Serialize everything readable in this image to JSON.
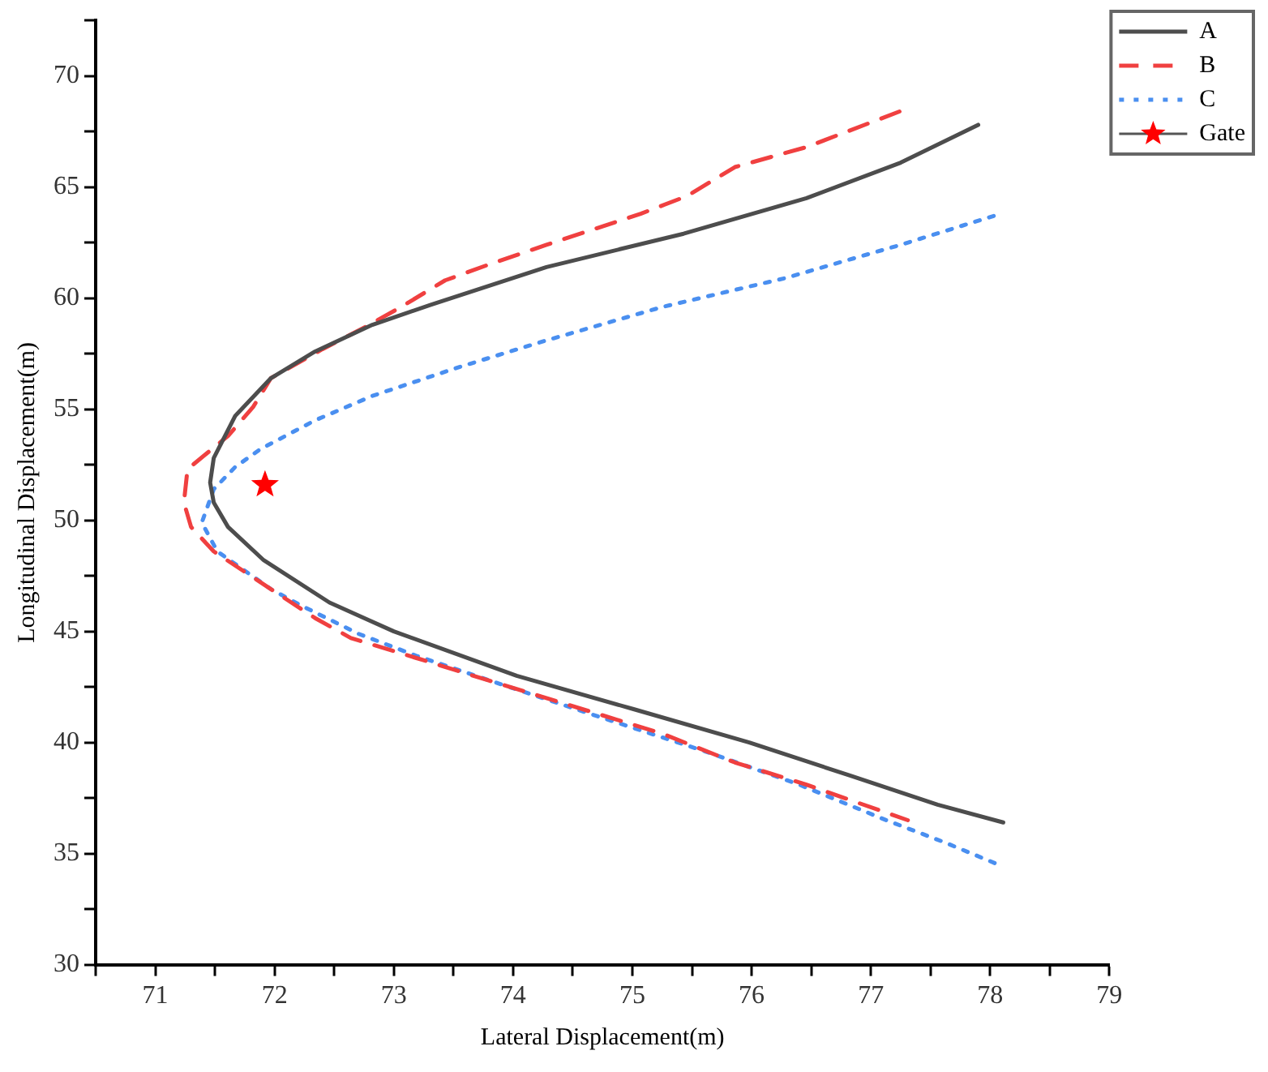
{
  "chart_data": {
    "type": "line",
    "xlabel": "Lateral Displacement(m)",
    "ylabel": "Longitudinal Displacement(m)",
    "xlim": [
      70.5,
      79
    ],
    "ylim": [
      30,
      72.5
    ],
    "xticks": [
      {
        "value": 70.5,
        "label": null
      },
      71,
      {
        "value": 71.5,
        "label": null
      },
      72,
      {
        "value": 72.5,
        "label": null
      },
      73,
      {
        "value": 73.5,
        "label": null
      },
      74,
      {
        "value": 74.5,
        "label": null
      },
      75,
      {
        "value": 75.5,
        "label": null
      },
      76,
      {
        "value": 76.5,
        "label": null
      },
      77,
      {
        "value": 77.5,
        "label": null
      },
      78,
      {
        "value": 78.5,
        "label": null
      },
      79
    ],
    "yticks": [
      30,
      {
        "value": 32.5,
        "label": null
      },
      35,
      {
        "value": 37.5,
        "label": null
      },
      40,
      {
        "value": 42.5,
        "label": null
      },
      45,
      {
        "value": 47.5,
        "label": null
      },
      50,
      {
        "value": 52.5,
        "label": null
      },
      55,
      {
        "value": 57.5,
        "label": null
      },
      60,
      {
        "value": 62.5,
        "label": null
      },
      65,
      {
        "value": 67.5,
        "label": null
      },
      70,
      {
        "value": 72.5,
        "label": null
      }
    ],
    "grid": false,
    "legend": "top right",
    "marker": "none",
    "series": [
      {
        "name": "A",
        "color": "#4d4d4d",
        "line_style": "solid",
        "x": [
          77.9,
          77.25,
          76.46,
          75.43,
          74.28,
          73.31,
          72.82,
          72.34,
          71.97,
          71.67,
          71.49,
          71.46,
          71.49,
          71.61,
          71.91,
          72.46,
          73.0,
          74.03,
          75.01,
          75.98,
          76.83,
          77.56,
          78.11
        ],
        "values": [
          67.8,
          66.1,
          64.5,
          62.9,
          61.4,
          59.7,
          58.8,
          57.6,
          56.4,
          54.7,
          52.8,
          51.7,
          50.8,
          49.7,
          48.2,
          46.3,
          45.0,
          43.0,
          41.5,
          40.0,
          38.5,
          37.2,
          36.4
        ]
      },
      {
        "name": "B",
        "color": "#f04040",
        "line_style": "dashed",
        "x": [
          77.24,
          76.46,
          75.86,
          75.46,
          75.07,
          74.28,
          73.79,
          73.43,
          73.06,
          72.76,
          72.4,
          71.97,
          71.82,
          71.61,
          71.27,
          71.24,
          71.3,
          71.49,
          71.97,
          72.34,
          72.64,
          73.19,
          73.79,
          74.46,
          75.25,
          75.86,
          76.46,
          77.31
        ],
        "values": [
          68.4,
          66.8,
          65.9,
          64.6,
          63.8,
          62.4,
          61.5,
          60.8,
          59.6,
          58.7,
          57.7,
          56.4,
          55.1,
          53.8,
          52.3,
          50.8,
          49.7,
          48.6,
          46.9,
          45.6,
          44.7,
          43.8,
          42.8,
          41.7,
          40.4,
          39.1,
          38.1,
          36.5
        ]
      },
      {
        "name": "C",
        "color": "#4a8ff0",
        "line_style": "dotted",
        "x": [
          78.03,
          77.25,
          76.28,
          75.25,
          74.28,
          73.55,
          72.82,
          72.34,
          71.88,
          71.67,
          71.49,
          71.39,
          71.52,
          71.97,
          72.21,
          72.7,
          73.19,
          73.91,
          74.64,
          75.61,
          76.4,
          77.13,
          77.62,
          78.07
        ],
        "values": [
          63.7,
          62.4,
          60.9,
          59.6,
          58.1,
          56.9,
          55.6,
          54.5,
          53.2,
          52.4,
          51.4,
          49.9,
          48.6,
          46.9,
          46.2,
          44.9,
          43.9,
          42.6,
          41.3,
          39.6,
          38.1,
          36.5,
          35.5,
          34.5
        ]
      },
      {
        "name": "Gate",
        "type": "scatter",
        "marker": "star",
        "color": "#ff0000",
        "x": [
          71.92
        ],
        "values": [
          51.6
        ]
      }
    ]
  }
}
